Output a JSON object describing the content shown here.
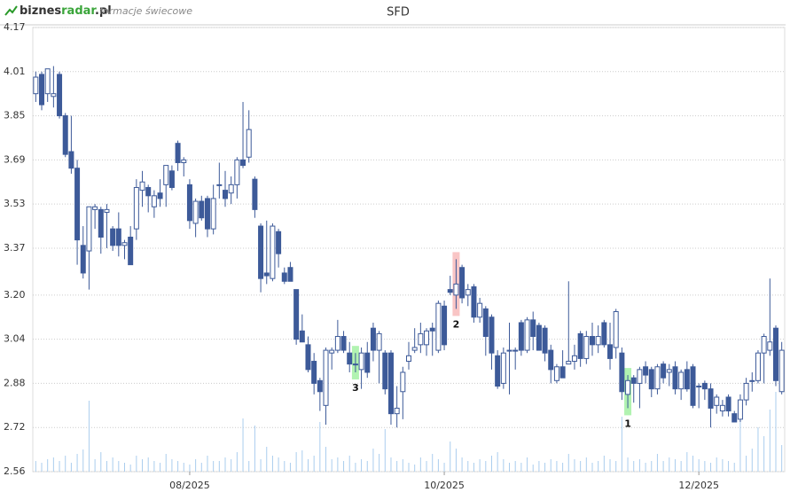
{
  "header": {
    "logo": [
      "biznes",
      "radar",
      ".pl"
    ],
    "subtitle": "formacje świecowe"
  },
  "chart_data": {
    "type": "candlestick",
    "title": "SFD",
    "categories": [
      null,
      null,
      null,
      null,
      null,
      null,
      null,
      null,
      null,
      null,
      null,
      null,
      null,
      null,
      null,
      null,
      null,
      null,
      null,
      null,
      null,
      null,
      null,
      null,
      null,
      null,
      "08/2025",
      null,
      null,
      null,
      null,
      null,
      null,
      null,
      null,
      null,
      null,
      null,
      null,
      null,
      null,
      null,
      null,
      null,
      null,
      null,
      null,
      null,
      null,
      null,
      null,
      null,
      null,
      null,
      null,
      null,
      null,
      null,
      null,
      null,
      null,
      null,
      null,
      null,
      null,
      null,
      null,
      null,
      null,
      "10/2025",
      null,
      null,
      null,
      null,
      null,
      null,
      null,
      null,
      null,
      null,
      null,
      null,
      null,
      null,
      null,
      null,
      null,
      null,
      null,
      null,
      null,
      null,
      null,
      null,
      null,
      null,
      null,
      null,
      null,
      null,
      null,
      null,
      null,
      null,
      null,
      null,
      null,
      null,
      null,
      null,
      null,
      null,
      "12/2025",
      null,
      null,
      null,
      null,
      null,
      null,
      null,
      null,
      null,
      null,
      null,
      null,
      null,
      null
    ],
    "open": [
      3.93,
      4.0,
      3.93,
      3.92,
      4.0,
      3.85,
      3.72,
      3.66,
      3.38,
      3.36,
      3.51,
      3.51,
      3.5,
      3.44,
      3.44,
      3.38,
      3.41,
      3.44,
      3.58,
      3.59,
      3.52,
      3.57,
      3.6,
      3.65,
      3.75,
      3.68,
      3.6,
      3.46,
      3.54,
      3.55,
      3.44,
      3.6,
      3.58,
      3.57,
      3.6,
      3.69,
      3.7,
      3.62,
      3.45,
      3.28,
      3.26,
      3.43,
      3.28,
      3.3,
      3.22,
      3.07,
      3.02,
      2.96,
      2.89,
      2.8,
      2.99,
      3.0,
      3.05,
      2.99,
      2.95,
      2.93,
      2.99,
      3.08,
      3.0,
      2.99,
      2.99,
      2.77,
      2.85,
      2.96,
      3.0,
      3.02,
      3.02,
      3.08,
      3.0,
      3.16,
      3.22,
      3.2,
      3.3,
      3.2,
      3.23,
      3.12,
      3.15,
      3.12,
      2.98,
      2.88,
      3.0,
      3.0,
      3.1,
      3.0,
      3.11,
      3.09,
      3.08,
      3.0,
      2.89,
      2.94,
      2.95,
      2.96,
      3.06,
      2.97,
      3.05,
      3.02,
      3.1,
      3.02,
      3.01,
      2.99,
      2.84,
      2.9,
      2.88,
      2.94,
      2.93,
      2.86,
      2.95,
      2.92,
      2.94,
      2.86,
      2.93,
      2.94,
      2.87,
      2.88,
      2.86,
      2.8,
      2.78,
      2.83,
      2.77,
      2.75,
      2.82,
      2.89,
      2.89,
      2.99,
      3.0,
      3.08,
      2.85
    ],
    "high": [
      4.01,
      4.01,
      4.02,
      4.03,
      4.01,
      3.86,
      3.85,
      3.69,
      3.45,
      3.52,
      3.53,
      3.52,
      3.53,
      3.45,
      3.5,
      3.4,
      3.45,
      3.62,
      3.65,
      3.6,
      3.58,
      3.62,
      3.67,
      3.67,
      3.76,
      3.7,
      3.62,
      3.55,
      3.56,
      3.56,
      3.6,
      3.68,
      3.65,
      3.63,
      3.7,
      3.9,
      3.87,
      3.63,
      3.46,
      3.47,
      3.46,
      3.44,
      3.3,
      3.32,
      3.22,
      3.13,
      3.05,
      2.99,
      2.9,
      3.01,
      3.01,
      3.11,
      3.07,
      3.03,
      2.99,
      3.01,
      3.03,
      3.1,
      3.07,
      3.0,
      3.0,
      2.87,
      2.94,
      3.03,
      3.08,
      3.1,
      3.08,
      3.1,
      3.18,
      3.18,
      3.27,
      3.33,
      3.31,
      3.24,
      3.24,
      3.19,
      3.16,
      3.13,
      3.0,
      3.01,
      3.1,
      3.01,
      3.11,
      3.12,
      3.14,
      3.1,
      3.09,
      3.02,
      2.95,
      3.0,
      3.25,
      3.02,
      3.07,
      3.07,
      3.1,
      3.09,
      3.11,
      3.1,
      3.15,
      3.01,
      2.91,
      2.91,
      2.94,
      2.96,
      2.94,
      2.95,
      2.96,
      2.95,
      2.96,
      2.93,
      2.96,
      2.95,
      2.88,
      2.89,
      2.88,
      2.84,
      2.82,
      2.84,
      2.78,
      2.84,
      2.9,
      2.92,
      3.0,
      3.06,
      3.26,
      3.09,
      3.03
    ],
    "low": [
      3.9,
      3.87,
      3.9,
      3.88,
      3.84,
      3.7,
      3.64,
      3.31,
      3.26,
      3.22,
      3.44,
      3.35,
      3.37,
      3.36,
      3.34,
      3.33,
      3.31,
      3.4,
      3.52,
      3.5,
      3.48,
      3.52,
      3.52,
      3.58,
      3.65,
      3.63,
      3.44,
      3.41,
      3.47,
      3.41,
      3.42,
      3.55,
      3.52,
      3.53,
      3.55,
      3.66,
      3.68,
      3.48,
      3.21,
      3.24,
      3.25,
      3.3,
      3.24,
      3.25,
      3.02,
      3.03,
      2.92,
      2.84,
      2.78,
      2.73,
      2.93,
      2.99,
      2.99,
      2.92,
      2.92,
      2.86,
      2.9,
      2.96,
      2.88,
      2.84,
      2.73,
      2.72,
      2.75,
      2.93,
      2.99,
      2.99,
      2.98,
      2.98,
      2.99,
      3.0,
      3.2,
      3.15,
      3.17,
      3.16,
      3.1,
      3.1,
      2.98,
      2.93,
      2.86,
      2.86,
      2.84,
      2.93,
      2.98,
      2.99,
      3.0,
      3.0,
      2.96,
      2.88,
      2.88,
      2.9,
      2.95,
      2.93,
      2.94,
      2.95,
      2.98,
      2.99,
      3.01,
      2.93,
      2.97,
      2.82,
      2.79,
      2.81,
      2.79,
      2.88,
      2.83,
      2.84,
      2.88,
      2.87,
      2.84,
      2.82,
      2.85,
      2.79,
      2.79,
      2.82,
      2.72,
      2.77,
      2.76,
      2.76,
      2.74,
      2.74,
      2.8,
      2.85,
      2.88,
      2.88,
      2.98,
      2.87,
      2.84
    ],
    "close": [
      3.99,
      3.89,
      4.02,
      3.93,
      3.85,
      3.71,
      3.66,
      3.4,
      3.28,
      3.52,
      3.52,
      3.41,
      3.51,
      3.38,
      3.38,
      3.39,
      3.31,
      3.59,
      3.61,
      3.56,
      3.56,
      3.55,
      3.67,
      3.59,
      3.68,
      3.69,
      3.47,
      3.54,
      3.48,
      3.44,
      3.55,
      3.6,
      3.55,
      3.6,
      3.69,
      3.67,
      3.8,
      3.51,
      3.26,
      3.27,
      3.45,
      3.35,
      3.25,
      3.25,
      3.04,
      3.03,
      2.93,
      2.88,
      2.85,
      3.0,
      3.0,
      3.05,
      3.0,
      2.95,
      2.95,
      2.99,
      2.92,
      3.0,
      3.06,
      2.86,
      2.77,
      2.79,
      2.92,
      2.98,
      3.01,
      3.06,
      3.07,
      3.07,
      3.17,
      3.02,
      3.21,
      3.24,
      3.19,
      3.22,
      3.12,
      3.17,
      3.05,
      2.99,
      2.87,
      2.99,
      3.0,
      3.0,
      3.0,
      3.11,
      3.05,
      3.0,
      2.99,
      2.93,
      2.94,
      2.9,
      2.96,
      2.98,
      2.97,
      3.05,
      3.02,
      3.05,
      3.02,
      2.97,
      3.14,
      2.85,
      2.89,
      2.88,
      2.93,
      2.91,
      2.86,
      2.94,
      2.9,
      2.93,
      2.86,
      2.92,
      2.86,
      2.8,
      2.87,
      2.86,
      2.79,
      2.83,
      2.8,
      2.78,
      2.74,
      2.82,
      2.88,
      2.89,
      2.99,
      3.05,
      3.03,
      2.89,
      3.0
    ],
    "volume": [
      12,
      10,
      14,
      16,
      12,
      18,
      10,
      20,
      25,
      80,
      14,
      22,
      12,
      16,
      12,
      10,
      8,
      18,
      14,
      16,
      12,
      10,
      20,
      14,
      12,
      10,
      8,
      14,
      10,
      18,
      12,
      12,
      16,
      14,
      22,
      60,
      12,
      52,
      14,
      28,
      18,
      16,
      12,
      10,
      22,
      24,
      14,
      18,
      56,
      28,
      14,
      16,
      12,
      18,
      10,
      14,
      12,
      26,
      20,
      48,
      16,
      12,
      14,
      10,
      8,
      16,
      12,
      20,
      14,
      10,
      34,
      26,
      16,
      12,
      10,
      14,
      12,
      18,
      22,
      14,
      10,
      12,
      10,
      16,
      8,
      12,
      10,
      14,
      12,
      10,
      20,
      14,
      12,
      16,
      10,
      12,
      18,
      14,
      12,
      62,
      16,
      12,
      14,
      10,
      12,
      20,
      12,
      16,
      14,
      12,
      22,
      18,
      14,
      12,
      10,
      16,
      14,
      12,
      10,
      60,
      18,
      26,
      50,
      40,
      70,
      90,
      30
    ],
    "colors": {
      "candle": "#3d5a99",
      "volume": "#aacdee"
    },
    "patterns": [
      {
        "label": "3",
        "index": 54,
        "color": "#9ef09e"
      },
      {
        "label": "2",
        "index": 71,
        "color": "#f7b6b6"
      },
      {
        "label": "1",
        "index": 100,
        "color": "#9ef09e"
      }
    ],
    "ylim": [
      2.56,
      4.17
    ],
    "yticks": [
      2.56,
      2.72,
      2.88,
      3.04,
      {
        "value": 3.2,
        "label": "3.20"
      },
      3.37,
      3.53,
      3.69,
      3.85,
      4.01,
      4.17
    ],
    "grid": true
  }
}
